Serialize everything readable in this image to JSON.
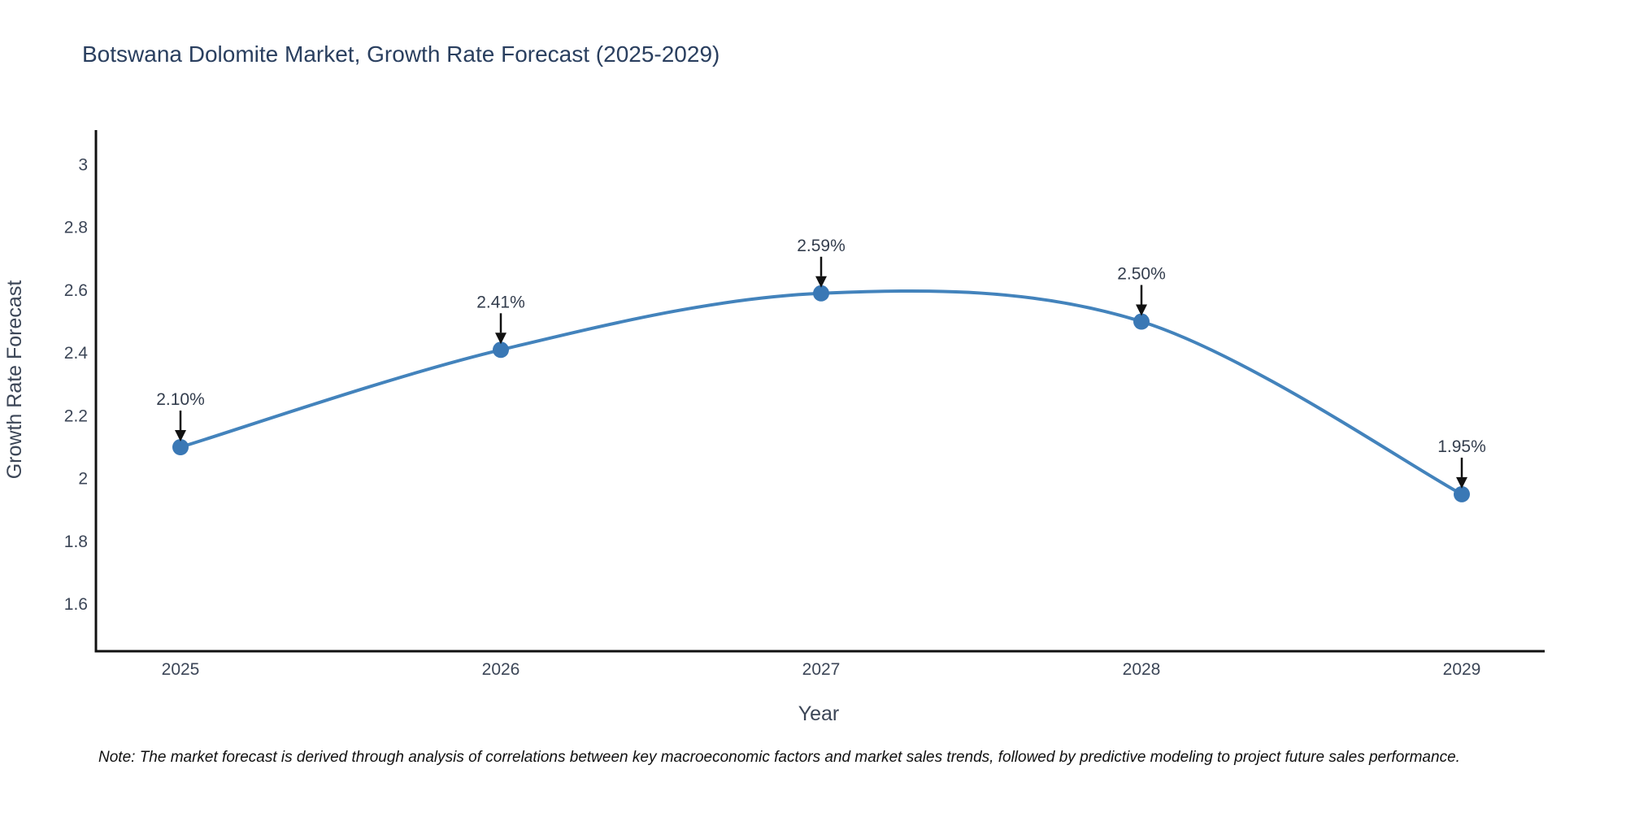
{
  "chart_data": {
    "type": "line",
    "title": "Botswana Dolomite Market, Growth Rate Forecast (2025-2029)",
    "xlabel": "Year",
    "ylabel": "Growth Rate Forecast",
    "categories": [
      "2025",
      "2026",
      "2027",
      "2028",
      "2029"
    ],
    "values": [
      2.1,
      2.41,
      2.59,
      2.5,
      1.95
    ],
    "point_labels": [
      "2.10%",
      "2.41%",
      "2.59%",
      "2.50%",
      "1.95%"
    ],
    "ytick_values": [
      3,
      2.8,
      2.6,
      2.4,
      2.2,
      2,
      1.8,
      1.6
    ],
    "ytick_labels": [
      "3",
      "2.8",
      "2.6",
      "2.4",
      "2.2",
      "2",
      "1.8",
      "1.6"
    ],
    "ylim": [
      1.45,
      3.11
    ],
    "grid": false,
    "legend": "none",
    "line_shape": "spline",
    "colors": {
      "line": "#4383bc",
      "marker": "#3a78b5",
      "arrow": "#111111",
      "axis": "#111111",
      "title": "#2a3f5f",
      "tick": "#3c4657",
      "axis_title": "#3c4657",
      "annotation": "#333d4d"
    },
    "note": "Note: The market forecast is derived through analysis of correlations between key macroeconomic factors and market sales trends, followed by predictive modeling to project future sales performance."
  }
}
